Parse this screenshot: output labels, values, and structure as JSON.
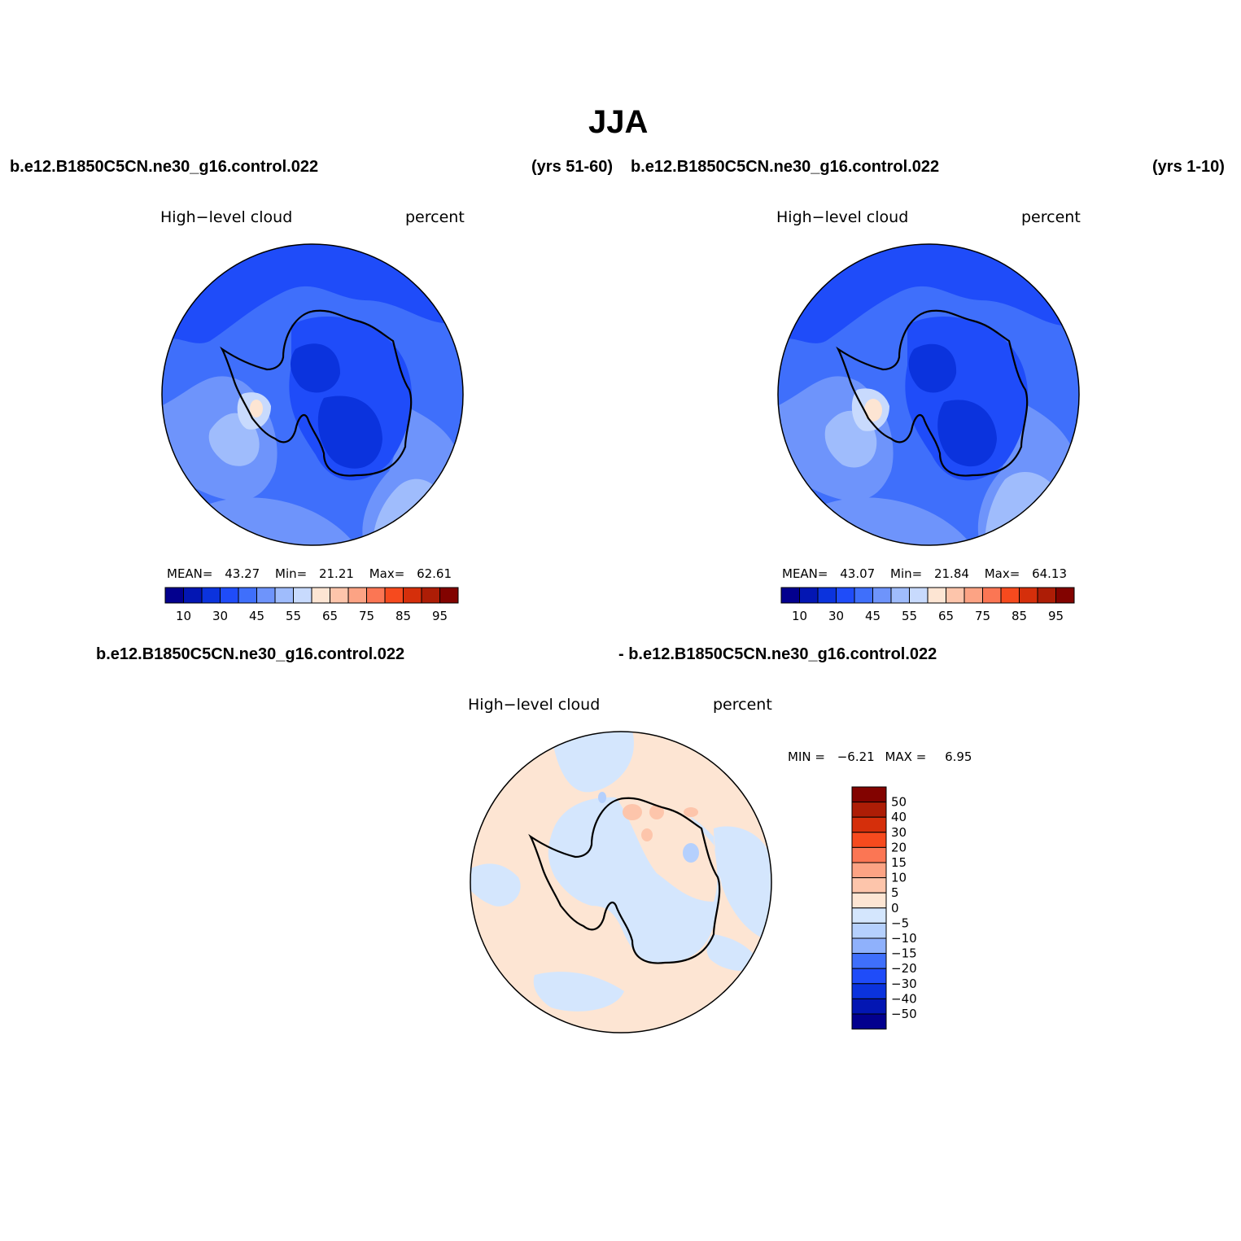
{
  "page": {
    "title": "JJA",
    "top_left_case": "b.e12.B1850C5CN.ne30_g16.control.022",
    "top_left_years": "(yrs 51-60)",
    "top_right_case": "b.e12.B1850C5CN.ne30_g16.control.022",
    "top_right_years": "(yrs 1-10)",
    "bottom_case_a": "b.e12.B1850C5CN.ne30_g16.control.022",
    "bottom_case_b": "- b.e12.B1850C5CN.ne30_g16.control.022"
  },
  "panels": {
    "left": {
      "variable": "High−level cloud",
      "units": "percent",
      "stats": {
        "mean_label": "MEAN=",
        "mean": "43.27",
        "min_label": "Min=",
        "min": "21.21",
        "max_label": "Max=",
        "max": "62.61"
      }
    },
    "right": {
      "variable": "High−level cloud",
      "units": "percent",
      "stats": {
        "mean_label": "MEAN=",
        "mean": "43.07",
        "min_label": "Min=",
        "min": "21.84",
        "max_label": "Max=",
        "max": "64.13"
      }
    },
    "diff": {
      "variable": "High−level cloud",
      "units": "percent",
      "stats": {
        "min_label": "MIN =",
        "min": "−6.21",
        "max_label": "MAX =",
        "max": "6.95"
      }
    }
  },
  "chart_data": [
    {
      "type": "heatmap",
      "projection": "south polar stereographic",
      "period": "yrs 51-60",
      "mean": 43.27,
      "min": 21.21,
      "max": 62.61,
      "colorbar": {
        "orientation": "horizontal",
        "levels": [
          10,
          20,
          30,
          40,
          45,
          50,
          55,
          60,
          65,
          70,
          75,
          80,
          85,
          90,
          95
        ],
        "tick_labels": [
          "10",
          "30",
          "45",
          "55",
          "65",
          "75",
          "85",
          "95"
        ],
        "colors": [
          "#03008e",
          "#0316b3",
          "#0b33dd",
          "#1f4cf9",
          "#3f6ffb",
          "#6e94fb",
          "#9fbcfc",
          "#c8dafd",
          "#fde5d3",
          "#fdc5ab",
          "#fca384",
          "#fb7654",
          "#f64a1e",
          "#d52f0b",
          "#ad1d06",
          "#820300"
        ]
      }
    },
    {
      "type": "heatmap",
      "projection": "south polar stereographic",
      "period": "yrs 1-10",
      "mean": 43.07,
      "min": 21.84,
      "max": 64.13,
      "colorbar": {
        "orientation": "horizontal",
        "levels": [
          10,
          20,
          30,
          40,
          45,
          50,
          55,
          60,
          65,
          70,
          75,
          80,
          85,
          90,
          95
        ],
        "tick_labels": [
          "10",
          "30",
          "45",
          "55",
          "65",
          "75",
          "85",
          "95"
        ],
        "colors": [
          "#03008e",
          "#0316b3",
          "#0b33dd",
          "#1f4cf9",
          "#3f6ffb",
          "#6e94fb",
          "#9fbcfc",
          "#c8dafd",
          "#fde5d3",
          "#fdc5ab",
          "#fca384",
          "#fb7654",
          "#f64a1e",
          "#d52f0b",
          "#ad1d06",
          "#820300"
        ]
      }
    },
    {
      "type": "heatmap",
      "projection": "south polar stereographic",
      "period": "difference",
      "min": -6.21,
      "max": 6.95,
      "colorbar": {
        "orientation": "vertical",
        "levels": [
          -50,
          -40,
          -30,
          -20,
          -15,
          -10,
          -5,
          0,
          5,
          10,
          15,
          20,
          30,
          40,
          50
        ],
        "tick_labels": [
          "50",
          "40",
          "30",
          "20",
          "15",
          "10",
          "5",
          "0",
          "−5",
          "−10",
          "−15",
          "−20",
          "−30",
          "−40",
          "−50"
        ],
        "colors_top_to_bottom": [
          "#820300",
          "#ad1d06",
          "#d52f0b",
          "#f64a1e",
          "#fb7654",
          "#fca384",
          "#fdc5ab",
          "#fde5d3",
          "#d4e6fd",
          "#b5d0fd",
          "#8fb1fc",
          "#3f6ffb",
          "#1f4cf9",
          "#0b33dd",
          "#0316b3",
          "#03008e"
        ]
      }
    }
  ]
}
